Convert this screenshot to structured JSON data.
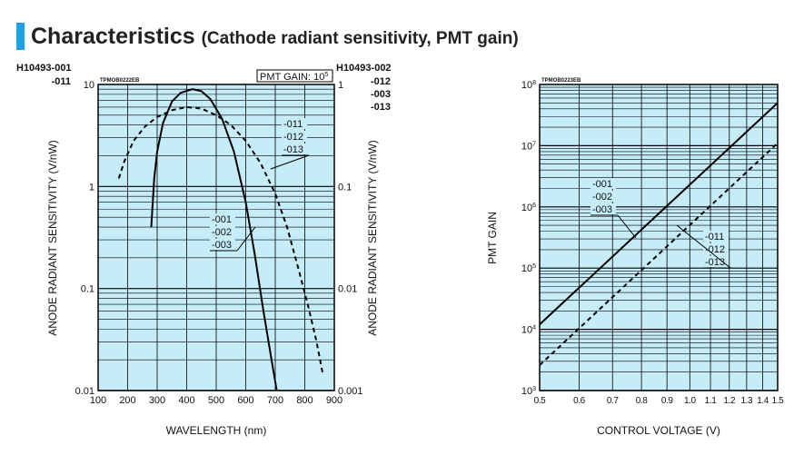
{
  "header": {
    "title": "Characteristics",
    "subtitle": "(Cathode radiant sensitivity, PMT gain)"
  },
  "colors": {
    "accent": "#1aa3e0",
    "plot_bg": "#c6ecf8"
  },
  "chart_data": [
    {
      "type": "line",
      "code": "TPMOB0222EB",
      "note": "PMT GAIN: 10",
      "note_exp": "5",
      "left_models": [
        "H10493-001",
        "-011"
      ],
      "right_models": [
        "H10493-002",
        "-012",
        "-003",
        "-013"
      ],
      "xlabel": "WAVELENGTH (nm)",
      "ylabel": "ANODE RADIANT SENSITIVITY (V/nW)",
      "ylabel_right": "ANODE RADIANT SENSITIVITY (V/nW)",
      "xlim": [
        100,
        900
      ],
      "ylim": [
        0.01,
        10
      ],
      "ylim_right": [
        0.001,
        1
      ],
      "xticks": [
        "100",
        "200",
        "300",
        "400",
        "500",
        "600",
        "700",
        "800",
        "900"
      ],
      "yticks": [
        "10",
        "1",
        "0.1",
        "0.01"
      ],
      "yticks_right": [
        "1",
        "0.1",
        "0.01",
        "0.001"
      ],
      "series": [
        {
          "name": "-001 / -002 / -003",
          "labels": [
            "-001",
            "-002",
            "-003"
          ],
          "style": "solid",
          "x": [
            280,
            290,
            300,
            320,
            350,
            380,
            420,
            450,
            480,
            520,
            560,
            600,
            630,
            660,
            690,
            705
          ],
          "y": [
            0.4,
            1.2,
            2.2,
            4.2,
            6.8,
            8.3,
            9,
            8.6,
            7.2,
            4.6,
            2.2,
            0.7,
            0.22,
            0.06,
            0.018,
            0.01
          ]
        },
        {
          "name": "-011 / -012 / -013",
          "labels": [
            "-011",
            "-012",
            "-013"
          ],
          "style": "dashed",
          "x": [
            170,
            190,
            220,
            260,
            300,
            350,
            400,
            450,
            500,
            550,
            600,
            650,
            700,
            740,
            780,
            810,
            840,
            860
          ],
          "y": [
            1.2,
            1.8,
            2.8,
            3.9,
            4.8,
            5.6,
            6,
            5.8,
            5,
            4,
            2.8,
            1.7,
            0.85,
            0.4,
            0.15,
            0.07,
            0.03,
            0.015
          ]
        }
      ]
    },
    {
      "type": "line",
      "code": "TPMOB0223EB",
      "xlabel": "CONTROL VOLTAGE (V)",
      "ylabel": "PMT GAIN",
      "xlim": [
        0.5,
        1.5
      ],
      "xscale": "log",
      "ylim": [
        1000,
        100000000
      ],
      "yscale": "log",
      "xticks": [
        "0.5",
        "0.6",
        "0.7",
        "0.8",
        "0.9",
        "1.0",
        "1.1",
        "1.2",
        "1.3",
        "1.4",
        "1.5"
      ],
      "yticks_exp": [
        "8",
        "7",
        "6",
        "5",
        "4",
        "3"
      ],
      "ytick_base": "10",
      "series": [
        {
          "name": "-001 / -002 / -003",
          "labels": [
            "-001",
            "-002",
            "-003"
          ],
          "style": "solid",
          "x": [
            0.5,
            1.5
          ],
          "y": [
            12000,
            50000000
          ]
        },
        {
          "name": "-011 / -012 / -013",
          "labels": [
            "-011",
            "-012",
            "-013"
          ],
          "style": "dashed",
          "x": [
            0.5,
            1.5
          ],
          "y": [
            2600,
            11000000
          ]
        }
      ]
    }
  ]
}
